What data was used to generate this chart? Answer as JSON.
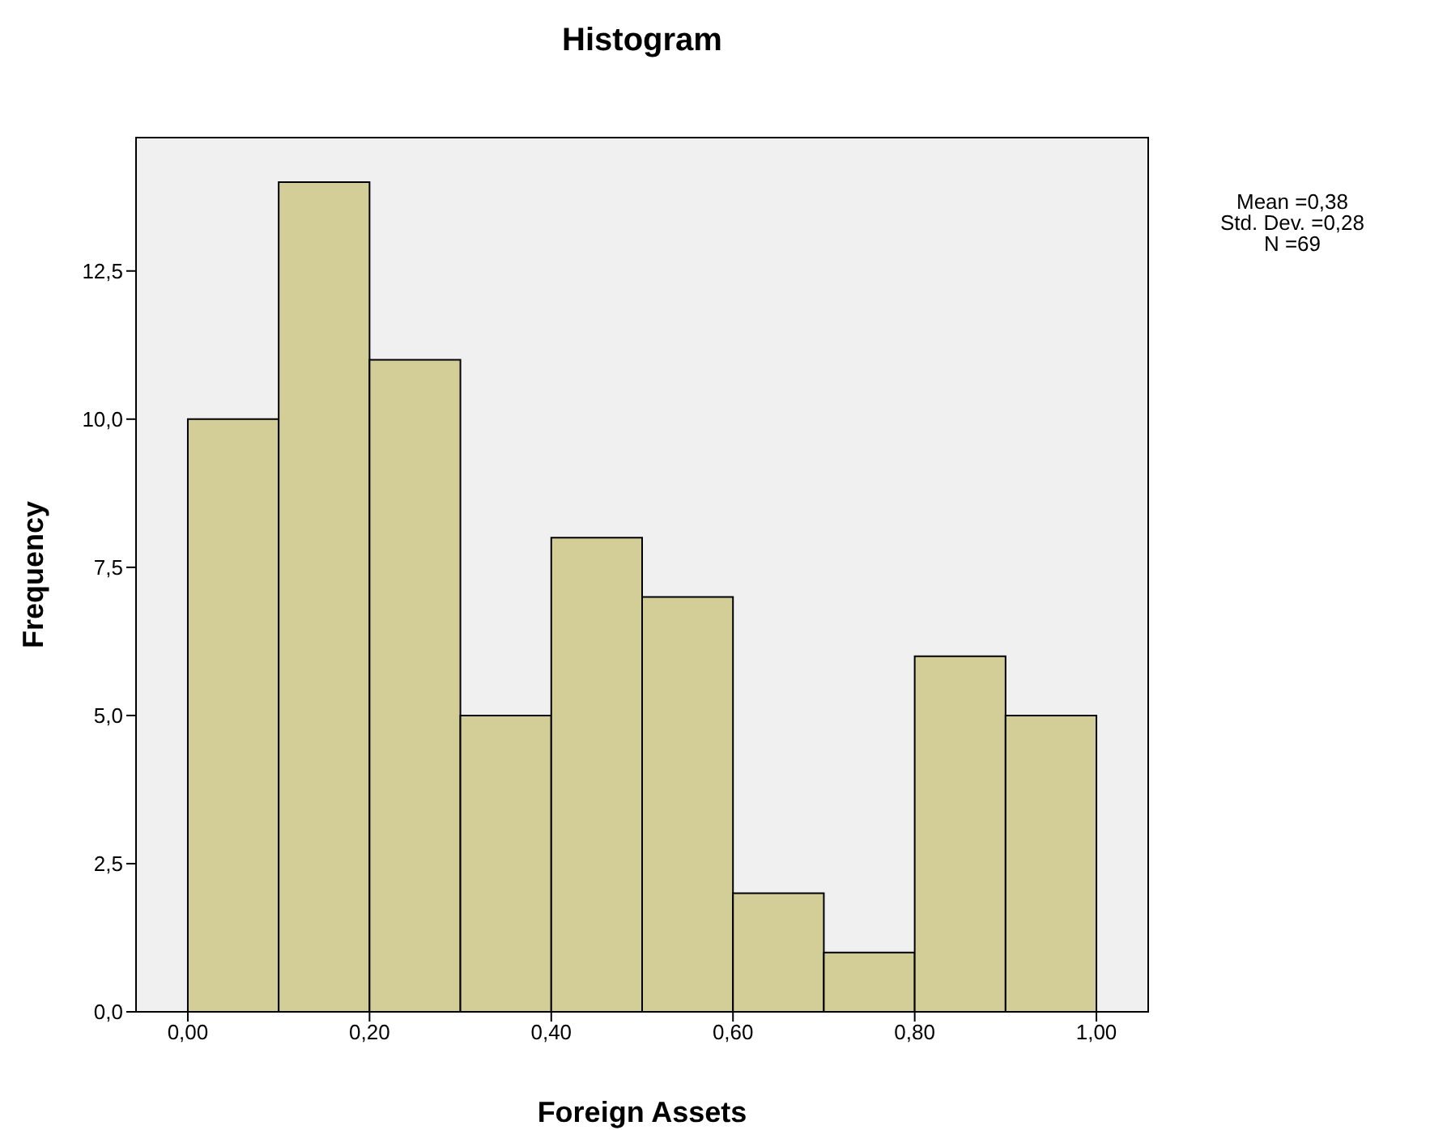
{
  "chart_data": {
    "type": "histogram",
    "title": "Histogram",
    "xlabel": "Foreign Assets",
    "ylabel": "Frequency",
    "bins": [
      0,
      0.1,
      0.2,
      0.3,
      0.4,
      0.5,
      0.6,
      0.7,
      0.8,
      0.9,
      1.0
    ],
    "values": [
      10,
      14,
      11,
      5,
      8,
      7,
      2,
      1,
      6,
      5
    ],
    "color": "#d3ce97",
    "xlim": [
      -0.057,
      1.057
    ],
    "xticks": [
      {
        "value": 0,
        "label": "0,00"
      },
      {
        "value": 0.2,
        "label": "0,20"
      },
      {
        "value": 0.4,
        "label": "0,40"
      },
      {
        "value": 0.6,
        "label": "0,60"
      },
      {
        "value": 0.8,
        "label": "0,80"
      },
      {
        "value": 1,
        "label": "1,00"
      }
    ],
    "ylim": [
      0,
      14.75
    ],
    "yticks": [
      {
        "value": 0,
        "label": "0,0"
      },
      {
        "value": 2.5,
        "label": "2,5"
      },
      {
        "value": 5,
        "label": "5,0"
      },
      {
        "value": 7.5,
        "label": "7,5"
      },
      {
        "value": 10,
        "label": "10,0"
      },
      {
        "value": 12.5,
        "label": "12,5"
      }
    ],
    "annotations": [
      "Mean =0,38",
      "Std. Dev. =0,28",
      "N =69"
    ]
  }
}
